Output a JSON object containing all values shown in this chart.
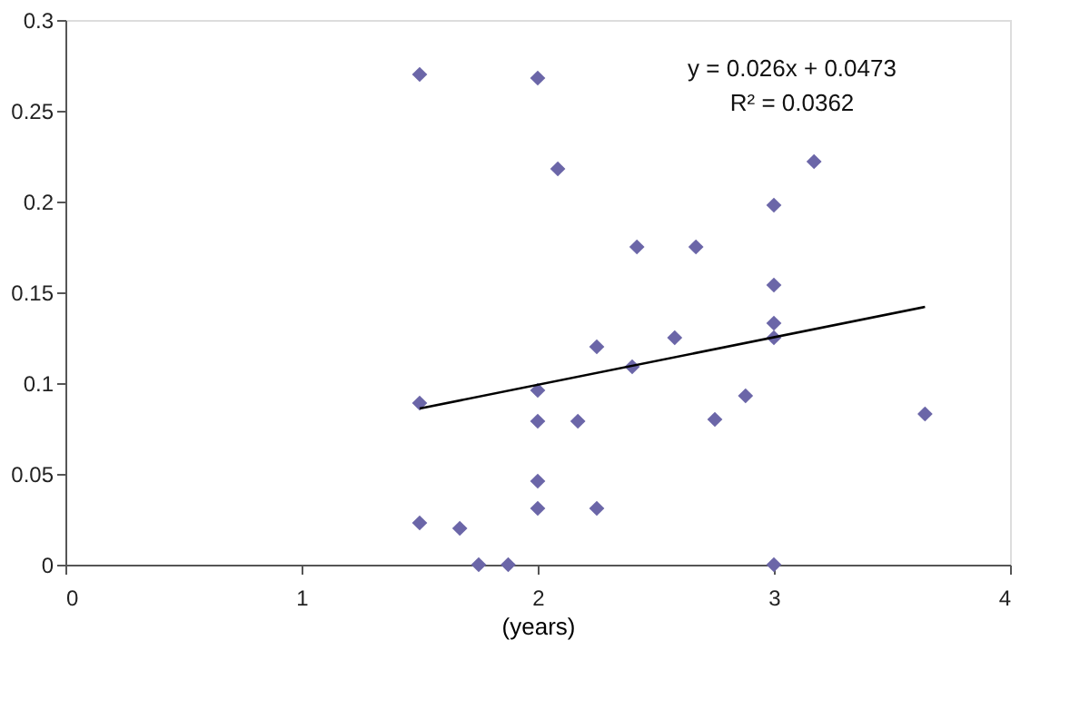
{
  "chart_data": {
    "type": "scatter",
    "xlabel": "(years)",
    "xlim": [
      0,
      4
    ],
    "xticks": [
      0,
      1,
      2,
      3,
      4
    ],
    "ylim": [
      0,
      0.3
    ],
    "yticks": [
      0,
      0.05,
      0.1,
      0.15,
      0.2,
      0.25,
      0.3
    ],
    "grid": false,
    "marker": "diamond",
    "annotations": [
      "y = 0.026x + 0.0473",
      "R² = 0.0362"
    ],
    "series": [
      {
        "type": "scatter",
        "color": "#6b66a8",
        "x": [
          1.5,
          2.0,
          2.085,
          3.17,
          3.0,
          2.42,
          2.67,
          3.0,
          3.0,
          3.0,
          2.58,
          2.25,
          2.4,
          2.0,
          1.5,
          2.88,
          2.75,
          2.0,
          2.17,
          3.64,
          2.0,
          2.0,
          2.25,
          1.5,
          1.67,
          1.75,
          1.875,
          3.0
        ],
        "values": [
          0.27,
          0.268,
          0.218,
          0.222,
          0.198,
          0.175,
          0.175,
          0.154,
          0.133,
          0.125,
          0.125,
          0.12,
          0.109,
          0.096,
          0.089,
          0.093,
          0.08,
          0.079,
          0.079,
          0.083,
          0.046,
          0.031,
          0.031,
          0.023,
          0.02,
          0,
          0,
          0
        ]
      },
      {
        "type": "line",
        "color": "#000000",
        "line_style": "solid",
        "marker": "none",
        "x": [
          1.5,
          3.64
        ],
        "values": [
          0.086,
          0.142
        ]
      }
    ]
  }
}
